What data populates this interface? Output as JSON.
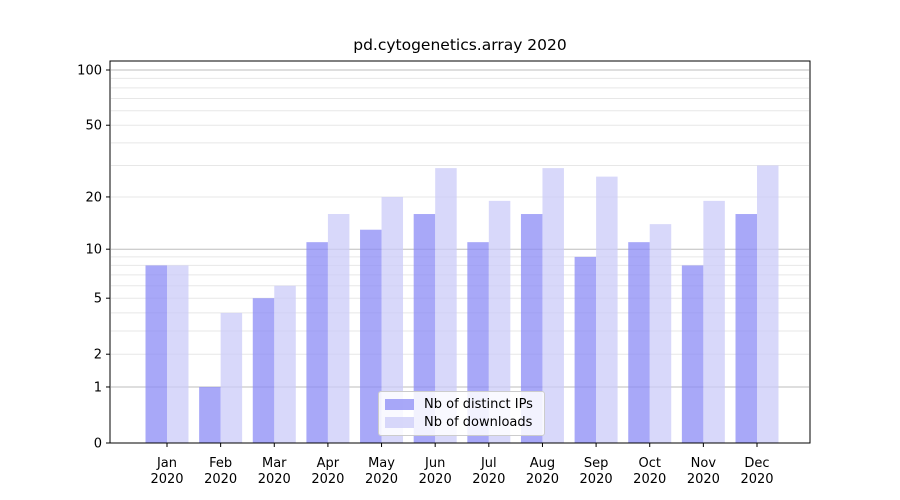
{
  "title": "pd.cytogenetics.array 2020",
  "chart_data": {
    "type": "bar",
    "title": "pd.cytogenetics.array 2020",
    "categories": [
      "Jan",
      "Feb",
      "Mar",
      "Apr",
      "May",
      "Jun",
      "Jul",
      "Aug",
      "Sep",
      "Oct",
      "Nov",
      "Dec"
    ],
    "category_year": "2020",
    "series": [
      {
        "name": "Nb of distinct IPs",
        "color": "#8b8bf6",
        "values": [
          8,
          1,
          5,
          11,
          13,
          16,
          11,
          16,
          9,
          11,
          8,
          16
        ]
      },
      {
        "name": "Nb of downloads",
        "color": "#cbcbf8",
        "values": [
          8,
          4,
          6,
          16,
          20,
          29,
          19,
          29,
          26,
          14,
          19,
          30
        ]
      }
    ],
    "bar_opacity": 0.75,
    "y_scale": "log1p",
    "ylim": [
      0,
      100
    ],
    "y_ticks": [
      0,
      1,
      2,
      5,
      10,
      20,
      50,
      100
    ],
    "y_major_gridlines": [
      1,
      10,
      100
    ],
    "y_minor_gridlines": [
      2,
      3,
      4,
      5,
      6,
      7,
      8,
      9,
      20,
      30,
      40,
      50,
      60,
      70,
      80,
      90
    ],
    "grid": true,
    "legend_position": "inside lower center",
    "colors": {
      "major_grid": "#bdbdbd",
      "minor_grid": "#e7e7e7",
      "spine": "#000000",
      "background": "#ffffff"
    }
  }
}
